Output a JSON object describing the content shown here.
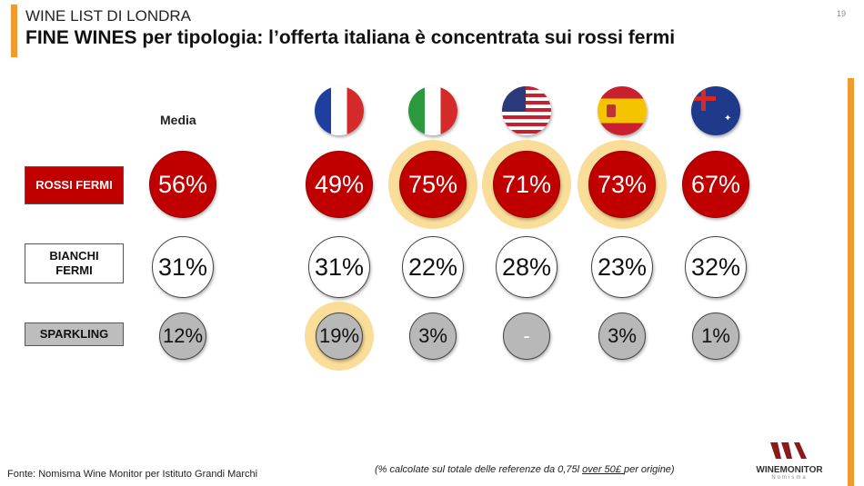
{
  "header": {
    "supertitle": "WINE LIST DI LONDRA",
    "title": "FINE WINES per tipologia: l’offerta italiana è concentrata sui rossi fermi",
    "page_number": "19"
  },
  "colors": {
    "accent": "#f39a2e",
    "red": "#c00000",
    "gray": "#b4b4b4",
    "highlight": "#f9dd98"
  },
  "chart_data": {
    "type": "table",
    "media_label": "Media",
    "columns": [
      "Media",
      "France",
      "Italy",
      "USA",
      "Spain",
      "Australia"
    ],
    "flags": [
      "flag-france-icon",
      "flag-italy-icon",
      "flag-usa-icon",
      "flag-spain-icon",
      "flag-australia-icon"
    ],
    "rows": [
      {
        "label": "ROSSI FERMI",
        "values": [
          "56%",
          "49%",
          "75%",
          "71%",
          "73%",
          "67%"
        ],
        "highlighted": [
          false,
          false,
          true,
          true,
          true,
          false
        ]
      },
      {
        "label": "BIANCHI FERMI",
        "values": [
          "31%",
          "31%",
          "22%",
          "28%",
          "23%",
          "32%"
        ],
        "highlighted": [
          false,
          false,
          false,
          false,
          false,
          false
        ]
      },
      {
        "label": "SPARKLING",
        "values": [
          "12%",
          "19%",
          "3%",
          "-",
          "3%",
          "1%"
        ],
        "highlighted": [
          false,
          true,
          false,
          false,
          false,
          false
        ]
      }
    ]
  },
  "footer": {
    "source": "Fonte: Nomisma Wine Monitor per Istituto Grandi Marchi",
    "note_pre": "(% calcolate sul totale delle referenze da 0,75l ",
    "note_link": "over 50£ ",
    "note_post": "per origine)",
    "logo_text": "WINEMONITOR",
    "logo_sub": "Nomisma"
  }
}
